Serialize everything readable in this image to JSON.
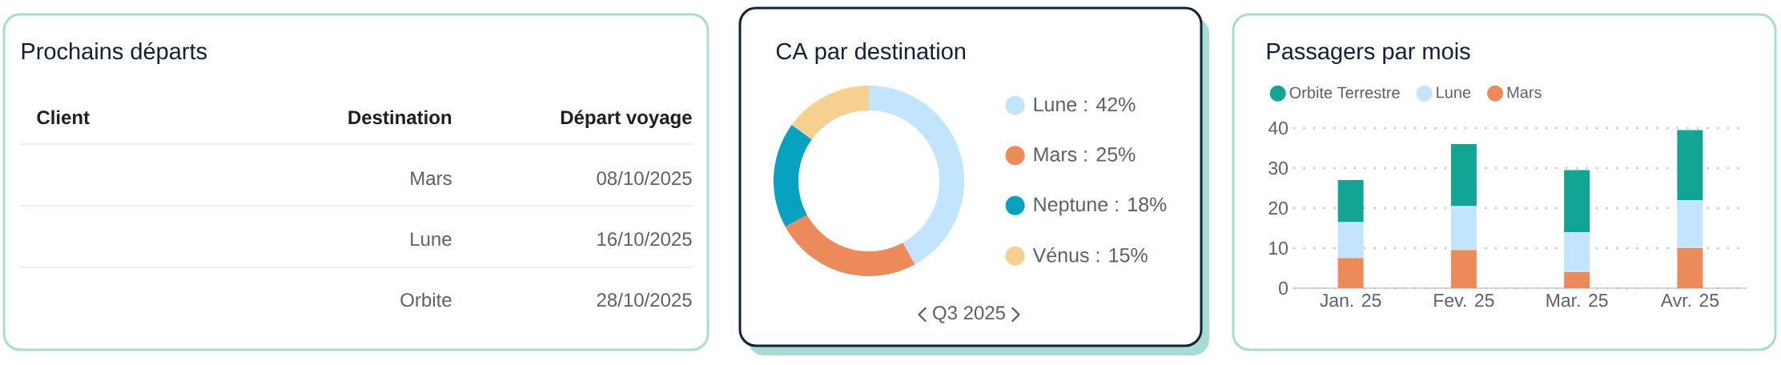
{
  "chart_data": [
    {
      "type": "other",
      "title": "Prochains départs",
      "annotations": [
        "Client",
        "Destination",
        "Départ voyage",
        "Mars",
        "08/10/2025",
        "Lune",
        "16/10/2025",
        "Orbite",
        "28/10/2025"
      ]
    },
    {
      "type": "donut",
      "title": "CA par destination",
      "categories": [
        "Lune",
        "Mars",
        "Neptune",
        "Vénus"
      ],
      "values": [
        42,
        25,
        18,
        15
      ],
      "colors": [
        "#c2e4fd",
        "#ec8a5a",
        "#06a2c0",
        "#f5d08e"
      ],
      "value_labels": [
        ": 42%",
        ": 25%",
        ": 18%",
        ": 15%"
      ],
      "legend": "right",
      "annotations": [
        "Q3 2025"
      ]
    },
    {
      "type": "bar",
      "title": "Passagers par mois",
      "categories": [
        "Jan. 25",
        "Fev. 25",
        "Mar. 25",
        "Avr. 25"
      ],
      "stacked": true,
      "series": [
        {
          "name": "Mars",
          "color": "#ec8a5a",
          "values": [
            7.5,
            9.5,
            4,
            10
          ]
        },
        {
          "name": "Lune",
          "color": "#c2e4fd",
          "values": [
            9,
            11,
            10,
            12
          ]
        },
        {
          "name": "Orbite Terrestre",
          "color": "#13a593",
          "values": [
            10.5,
            15.5,
            15.5,
            17.5
          ]
        }
      ],
      "ylim": [
        0,
        40
      ],
      "yticks": [
        0,
        10,
        20,
        30,
        40
      ],
      "grid": "y",
      "legend": "top left"
    }
  ]
}
